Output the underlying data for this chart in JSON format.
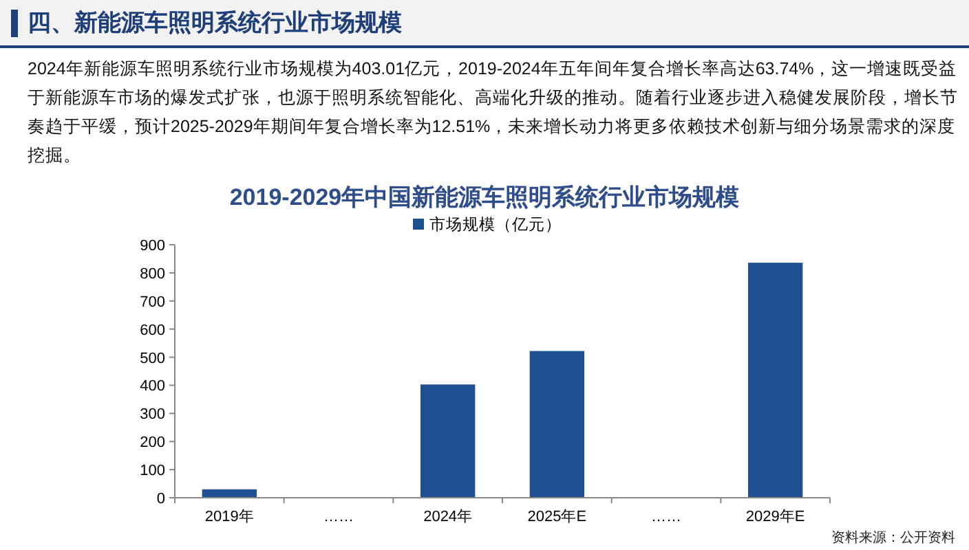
{
  "chart_data": {
    "type": "bar",
    "title": "四、新能源车照明系统行业市场规模",
    "subtitle": "2019-2029年中国新能源车照明系统行业市场规模",
    "annotations": [
      "2024年新能源车照明系统行业市场规模为403.01亿元，2019-2024年五年间年复合增长率高达63.74%，这一增速既受益于新能源车市场的爆发式扩张，也源于照明系统智能化、高端化升级的推动。随着行业逐步进入稳健发展阶段，增长节奏趋于平缓，预计2025-2029年期间年复合增长率为12.51%，未来增长动力将更多依赖技术创新与细分场景需求的深度挖掘。",
      "资料来源：公开资料"
    ],
    "categories": [
      "2019年",
      "……",
      "2024年",
      "2025年E",
      "……",
      "2029年E"
    ],
    "series": [
      {
        "name": "市场规模（亿元）",
        "color": "#1f5192",
        "values": [
          30,
          null,
          403,
          522,
          null,
          836
        ]
      }
    ],
    "ylim": [
      0,
      900
    ],
    "yticks": [
      0,
      100,
      200,
      300,
      400,
      500,
      600,
      700,
      800,
      900
    ],
    "grid": false,
    "legend": "top"
  }
}
